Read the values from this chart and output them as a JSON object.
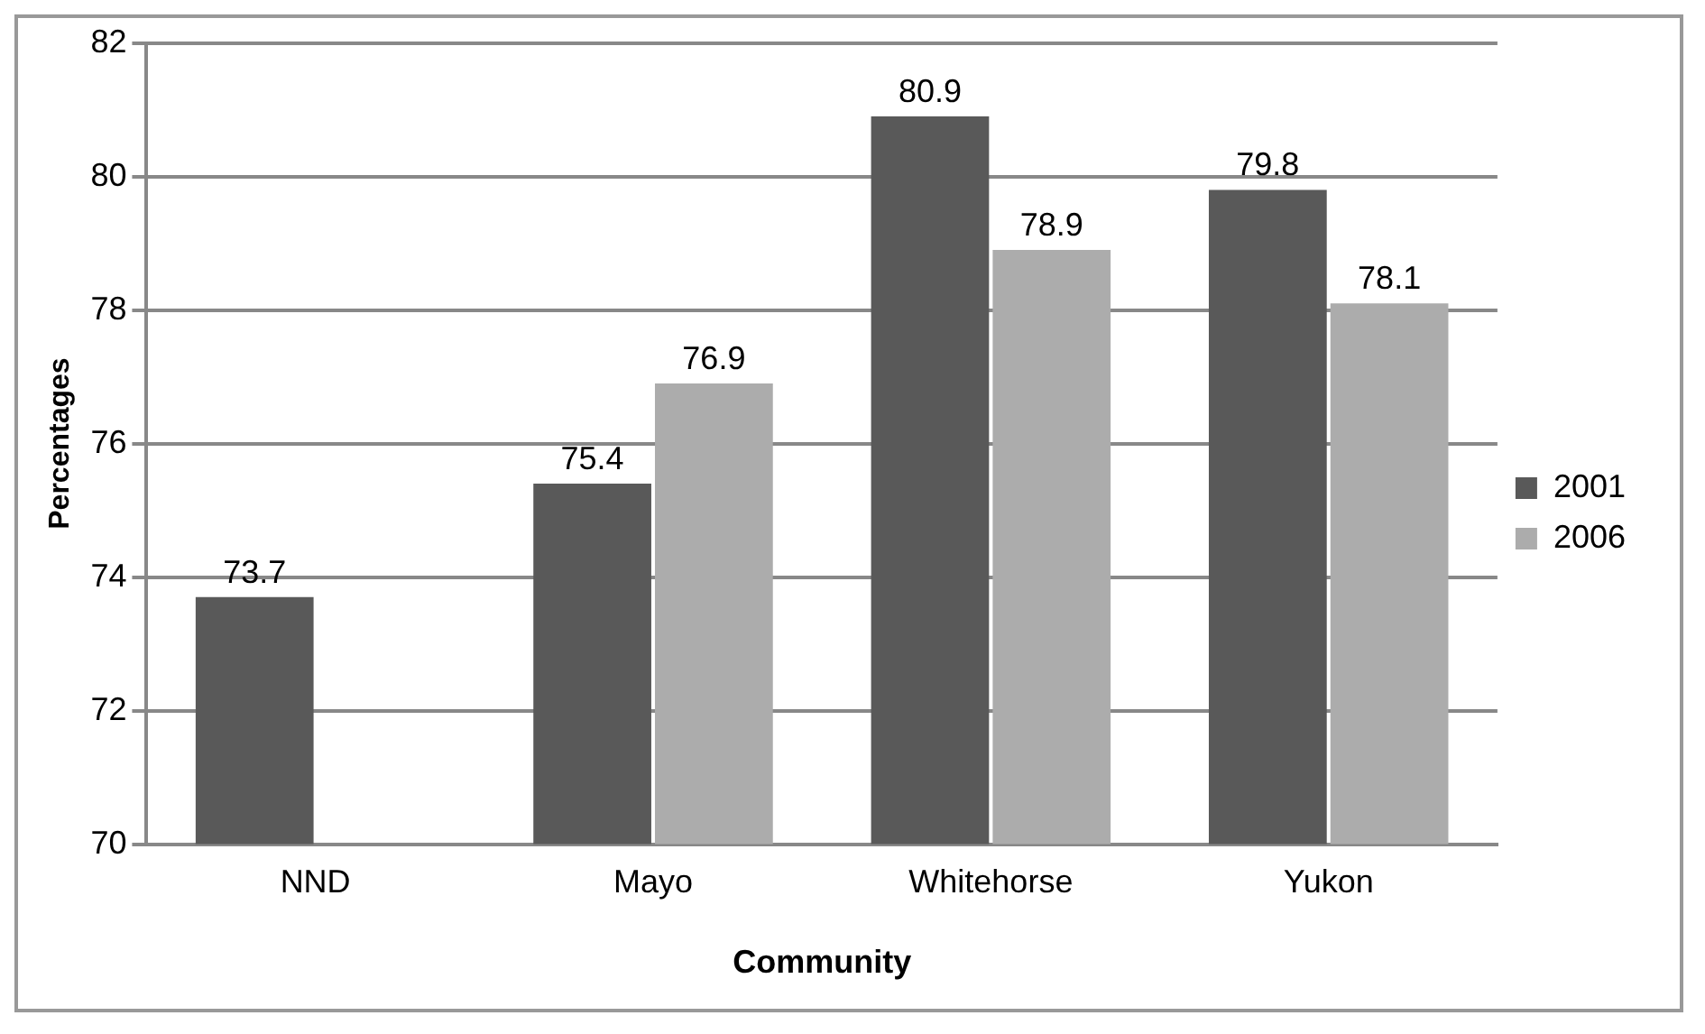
{
  "chart_data": {
    "type": "bar",
    "xlabel": "Community",
    "ylabel": "Percentages",
    "categories": [
      "NND",
      "Mayo",
      "Whitehorse",
      "Yukon"
    ],
    "series": [
      {
        "name": "2001",
        "color": "#595959",
        "values": [
          73.7,
          75.4,
          80.9,
          79.8
        ]
      },
      {
        "name": "2006",
        "color": "#acacac",
        "values": [
          null,
          76.9,
          78.9,
          78.1
        ]
      }
    ],
    "ylim": [
      70,
      82
    ],
    "yticks": [
      70,
      72,
      74,
      76,
      78,
      80,
      82
    ],
    "grid": "y",
    "legend": "right",
    "data_labels": true
  }
}
